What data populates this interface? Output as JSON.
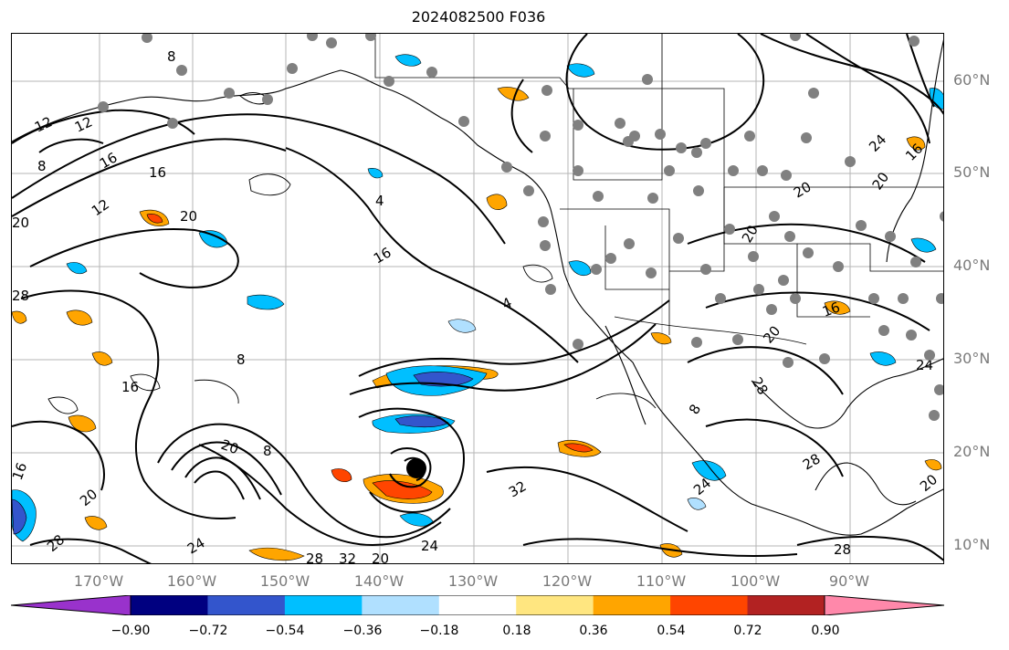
{
  "title": "2024082500 F036",
  "lat_labels": [
    "60°N",
    "50°N",
    "40°N",
    "30°N",
    "20°N",
    "10°N"
  ],
  "lon_labels": [
    "170°W",
    "160°W",
    "150°W",
    "140°W",
    "130°W",
    "120°W",
    "110°W",
    "100°W",
    "90°W"
  ],
  "contour_labels": [
    "8",
    "12",
    "12",
    "16",
    "16",
    "20",
    "20",
    "8",
    "12",
    "4",
    "16",
    "4",
    "24",
    "16",
    "20",
    "20",
    "20",
    "28",
    "20",
    "16",
    "24",
    "28",
    "8",
    "8",
    "8",
    "20",
    "16",
    "28",
    "24",
    "20",
    "28",
    "32",
    "28",
    "20",
    "24",
    "28",
    "32",
    "20",
    "24",
    "16"
  ],
  "colorbar": {
    "colors": [
      "#9932cc",
      "#000080",
      "#3355cc",
      "#00bfff",
      "#b0e0ff",
      "#ffffff",
      "#ffe680",
      "#ffa500",
      "#ff4500",
      "#b22222",
      "#ff88aa"
    ],
    "tick_labels": [
      "−0.90",
      "−0.72",
      "−0.54",
      "−0.36",
      "−0.18",
      "0.18",
      "0.36",
      "0.54",
      "0.72",
      "0.90"
    ]
  },
  "stations": "gray-dot-markers",
  "storm_center": "black-dot-marker"
}
